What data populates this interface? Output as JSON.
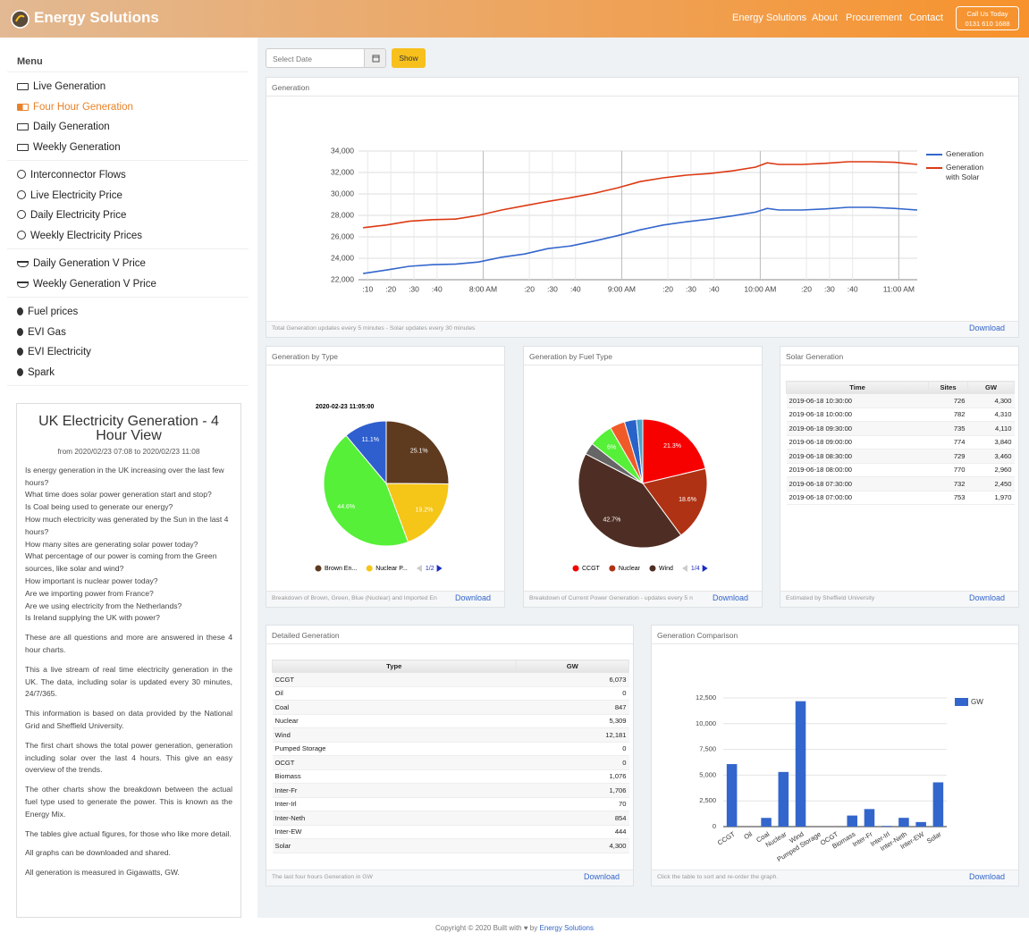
{
  "header": {
    "brand": "Energy Solutions",
    "nav": [
      "Energy Solutions",
      "About",
      "Procurement",
      "Contact"
    ],
    "call": {
      "line1": "Call Us Today",
      "line2": "0131 610 1688"
    }
  },
  "sidebar": {
    "title": "Menu",
    "groups": [
      [
        "Live Generation",
        "Four Hour Generation",
        "Daily Generation",
        "Weekly Generation"
      ],
      [
        "Interconnector Flows",
        "Live Electricity Price",
        "Daily Electricity Price",
        "Weekly Electricity Prices"
      ],
      [
        "Daily Generation V Price",
        "Weekly Generation V Price"
      ],
      [
        "Fuel prices",
        "EVI Gas",
        "EVI Electricity",
        "Spark"
      ]
    ],
    "info": {
      "title": "UK Electricity Generation - 4 Hour View",
      "range": "from 2020/02/23 07:08 to 2020/02/23 11:08",
      "questions": [
        "Is energy generation in the UK increasing over the last few hours?",
        "What time does solar power generation start and stop?",
        "Is Coal being used to generate our energy?",
        "How much electricity was generated by the Sun in the last 4 hours?",
        "How many sites are generating solar power today?",
        "What percentage of our power is coming from the Green sources, like solar and wind?",
        "How important is nuclear power today?",
        "Are we importing power from France?",
        "Are we using electricity from the Netherlands?",
        "Is Ireland supplying the UK with power?"
      ],
      "paragraphs": [
        "These are all questions and more are answered in these 4 hour charts.",
        "This a live stream of real time electricity generation in the UK. The data, including solar is updated every 30 minutes, 24/7/365.",
        "This information is based on data provided by the National Grid and Sheffield University.",
        "The first chart shows the total power generation, generation including solar over the last 4 hours. This give an easy overview of the trends.",
        "The other charts show the breakdown between the actual fuel type used to generate the power. This is known as the Energy Mix.",
        "The tables give actual figures, for those who like more detail.",
        "All graphs can be downloaded and shared.",
        "All generation is measured in Gigawatts, GW."
      ]
    }
  },
  "controls": {
    "date_placeholder": "Select Date",
    "button": "Show"
  },
  "panels": {
    "generation": {
      "title": "Generation",
      "footer": "Total Generation updates every 5 minutes - Solar updates every 30 minutes",
      "download": "Download",
      "chart_data": {
        "type": "line",
        "grid": true,
        "x": [
          "07:08",
          "07:18",
          "07:28",
          "07:38",
          "07:48",
          "07:58",
          "08:08",
          "08:18",
          "08:28",
          "08:38",
          "08:48",
          "08:58",
          "09:08",
          "09:18",
          "09:28",
          "09:38",
          "09:48",
          "09:58",
          "10:03",
          "10:08",
          "10:18",
          "10:28",
          "10:38",
          "10:48",
          "10:58",
          "11:08"
        ],
        "series": [
          {
            "name": "Generation",
            "color": "#3366cc",
            "values": [
              22580,
              22900,
              23250,
              23400,
              23450,
              23650,
              24100,
              24400,
              24900,
              25150,
              25600,
              26100,
              26650,
              27100,
              27400,
              27650,
              27950,
              28300,
              28650,
              28500,
              28500,
              28600,
              28750,
              28750,
              28650,
              28500
            ]
          },
          {
            "name": "Generation with Solar",
            "color": "#dc3912",
            "values": [
              26850,
              27100,
              27450,
              27600,
              27650,
              28000,
              28500,
              28900,
              29300,
              29650,
              30050,
              30550,
              31150,
              31500,
              31750,
              31900,
              32150,
              32500,
              32900,
              32750,
              32750,
              32850,
              33000,
              33000,
              32950,
              32750
            ]
          }
        ],
        "xlim": [
          "07:06",
          "11:08"
        ],
        "xticks": [
          {
            "value": "07:10",
            "label": ":10"
          },
          {
            "value": "07:20",
            "label": ":20"
          },
          {
            "value": "07:30",
            "label": ":30"
          },
          {
            "value": "07:40",
            "label": ":40"
          },
          {
            "value": "08:00",
            "label": "8:00 AM"
          },
          {
            "value": "08:20",
            "label": ":20"
          },
          {
            "value": "08:30",
            "label": ":30"
          },
          {
            "value": "08:40",
            "label": ":40"
          },
          {
            "value": "09:00",
            "label": "9:00 AM"
          },
          {
            "value": "09:20",
            "label": ":20"
          },
          {
            "value": "09:30",
            "label": ":30"
          },
          {
            "value": "09:40",
            "label": ":40"
          },
          {
            "value": "10:00",
            "label": "10:00 AM"
          },
          {
            "value": "10:20",
            "label": ":20"
          },
          {
            "value": "10:30",
            "label": ":30"
          },
          {
            "value": "10:40",
            "label": ":40"
          },
          {
            "value": "11:00",
            "label": "11:00 AM"
          }
        ],
        "ylim": [
          22000,
          34000
        ],
        "yticks": [
          {
            "value": 22000,
            "label": "22,000"
          },
          {
            "value": 24000,
            "label": "24,000"
          },
          {
            "value": 26000,
            "label": "26,000"
          },
          {
            "value": 28000,
            "label": "28,000"
          },
          {
            "value": 30000,
            "label": "30,000"
          },
          {
            "value": 32000,
            "label": "32,000"
          },
          {
            "value": 34000,
            "label": "34,000"
          }
        ]
      }
    },
    "by_type": {
      "title": "Generation by Type",
      "footer": "Breakdown of Brown, Green, Blue (Nuclear) and Imported En",
      "download": "Download",
      "chart_data": {
        "type": "pie",
        "title": "2020-02-23 11:05:00",
        "categories": [
          "Brown En...",
          "Nuclear P...",
          null,
          null
        ],
        "values": [
          25.1,
          19.2,
          44.6,
          11.1
        ],
        "value_labels": [
          "25.1%",
          "19.2%",
          "44.6%",
          "11.1%"
        ],
        "colors": [
          "#5e3a1f",
          "#f5c518",
          "#55f037",
          "#2f5fce"
        ],
        "legend_page": "1/2"
      }
    },
    "by_fuel": {
      "title": "Generation by Fuel Type",
      "footer": "Breakdown of Current Power Generation - updates every 5 n",
      "download": "Download",
      "chart_data": {
        "type": "pie",
        "categories": [
          "CCGT",
          "Nuclear",
          "Wind",
          null,
          null,
          null,
          null,
          null
        ],
        "values": [
          21.3,
          18.6,
          42.7,
          3.0,
          6,
          3.8,
          3.0,
          1.6
        ],
        "value_labels": [
          "21.3%",
          "18.6%",
          "42.7%",
          null,
          "6%",
          null,
          null,
          null
        ],
        "colors": [
          "#f70000",
          "#b03214",
          "#4e2e24",
          "#666666",
          "#55f037",
          "#f05a28",
          "#2962c8",
          "#4aa3c8"
        ],
        "legend_page": "1/4"
      }
    },
    "solar": {
      "title": "Solar Generation",
      "footer": "Estimated by Sheffield University",
      "download": "Download",
      "table": {
        "columns": [
          "Time",
          "Sites",
          "GW"
        ],
        "rows": [
          [
            "2019-06-18 10:30:00",
            "726",
            "4,300"
          ],
          [
            "2019-06-18 10:00:00",
            "782",
            "4,310"
          ],
          [
            "2019-06-18 09:30:00",
            "735",
            "4,110"
          ],
          [
            "2019-06-18 09:00:00",
            "774",
            "3,840"
          ],
          [
            "2019-06-18 08:30:00",
            "729",
            "3,460"
          ],
          [
            "2019-06-18 08:00:00",
            "770",
            "2,960"
          ],
          [
            "2019-06-18 07:30:00",
            "732",
            "2,450"
          ],
          [
            "2019-06-18 07:00:00",
            "753",
            "1,970"
          ]
        ]
      }
    },
    "detailed": {
      "title": "Detailed Generation",
      "footer": "The last four hours Generation in GW",
      "download": "Download",
      "table": {
        "columns": [
          "Type",
          "GW"
        ],
        "rows": [
          [
            "CCGT",
            "6,073"
          ],
          [
            "Oil",
            "0"
          ],
          [
            "Coal",
            "847"
          ],
          [
            "Nuclear",
            "5,309"
          ],
          [
            "Wind",
            "12,181"
          ],
          [
            "Pumped Storage",
            "0"
          ],
          [
            "OCGT",
            "0"
          ],
          [
            "Biomass",
            "1,076"
          ],
          [
            "Inter-Fr",
            "1,706"
          ],
          [
            "Inter-Irl",
            "70"
          ],
          [
            "Inter-Neth",
            "854"
          ],
          [
            "Inter-EW",
            "444"
          ],
          [
            "Solar",
            "4,300"
          ]
        ]
      }
    },
    "comparison": {
      "title": "Generation Comparison",
      "footer": "Click the table to sort and re-order the graph.",
      "download": "Download",
      "chart_data": {
        "type": "bar",
        "grid": true,
        "categories": [
          "CCGT",
          "Oil",
          "Coal",
          "Nuclear",
          "Wind",
          "Pumped Storage",
          "OCGT",
          "Biomass",
          "Inter-Fr",
          "Inter-Irl",
          "Inter-Neth",
          "Inter-EW",
          "Solar"
        ],
        "series": [
          {
            "name": "GW",
            "color": "#3366cc",
            "values": [
              6073,
              0,
              847,
              5309,
              12181,
              0,
              0,
              1076,
              1706,
              70,
              854,
              444,
              4300
            ]
          }
        ],
        "ylim": [
          0,
          12500
        ],
        "yticks": [
          0,
          {
            "value": 2500,
            "label": "2,500"
          },
          {
            "value": 5000,
            "label": "5,000"
          },
          {
            "value": 7500,
            "label": "7,500"
          },
          {
            "value": 10000,
            "label": "10,000"
          },
          {
            "value": 12500,
            "label": "12,500"
          }
        ]
      }
    }
  },
  "footer": {
    "text": "Copyright © 2020 Built with ♥ by",
    "link": "Energy Solutions"
  }
}
